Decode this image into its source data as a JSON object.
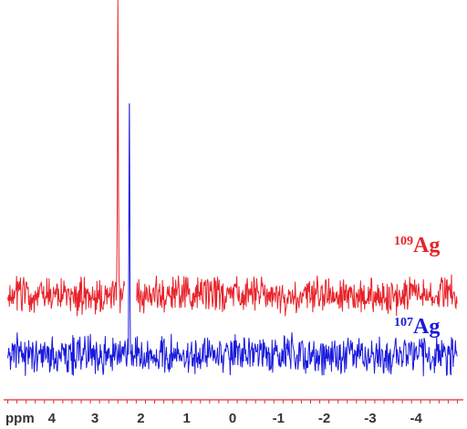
{
  "chart_data": {
    "type": "line",
    "title": "",
    "xlabel": "ppm",
    "ylabel": "",
    "xlim": [
      4.9,
      -4.9
    ],
    "x_reversed": true,
    "grid": false,
    "axis_color": "#e0302a",
    "x_ticks": [
      4,
      3,
      2,
      1,
      0,
      -1,
      -2,
      -3,
      -4
    ],
    "x_tick_labels": [
      "4",
      "3",
      "2",
      "1",
      "0",
      "-1",
      "-2",
      "-3",
      "-4"
    ],
    "series": [
      {
        "name": "109Ag",
        "label_mass": "109",
        "label_element": "Ag",
        "color": "#e8232a",
        "peaks": [
          {
            "x": 2.5,
            "height": 1.0
          }
        ],
        "noise_level": 0.07,
        "gap": [
          2.35,
          2.1
        ]
      },
      {
        "name": "107Ag",
        "label_mass": "107",
        "label_element": "Ag",
        "color": "#1a1adc",
        "peaks": [
          {
            "x": 2.25,
            "height": 0.95
          }
        ],
        "noise_level": 0.07
      }
    ]
  }
}
